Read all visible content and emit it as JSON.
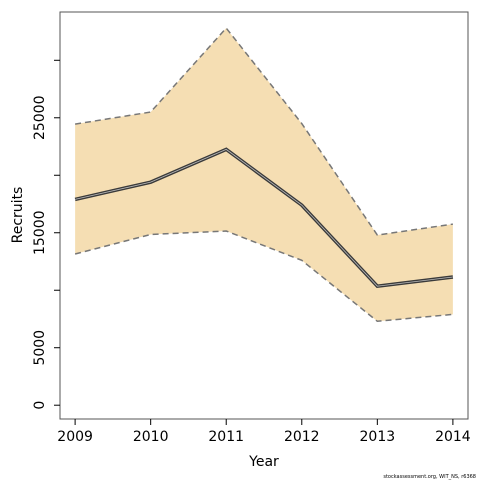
{
  "chart_data": {
    "type": "line",
    "x_label": "Year",
    "y_label": "Recruits",
    "footnote": "stockassessment.org, WIT_NS, r6368",
    "x": [
      2009,
      2010,
      2011,
      2012,
      2013,
      2014
    ],
    "values": [
      17900,
      19400,
      22250,
      17400,
      10350,
      11150
    ],
    "upper": [
      24450,
      25500,
      32800,
      24500,
      14800,
      15750
    ],
    "lower": [
      13150,
      14850,
      15150,
      12600,
      7300,
      7900
    ],
    "line_color": "#3a3a3a",
    "band_color": "#f5deb3",
    "band_edge_color": "#777777",
    "xlim": [
      2008.8,
      2014.2
    ],
    "xticks": [
      2009,
      2010,
      2011,
      2012,
      2013,
      2014
    ],
    "ylim": [
      -1200,
      34200
    ],
    "yticks": [
      0,
      5000,
      15000,
      25000
    ],
    "yticks_unlabeled": [
      10000,
      20000,
      30000
    ]
  }
}
